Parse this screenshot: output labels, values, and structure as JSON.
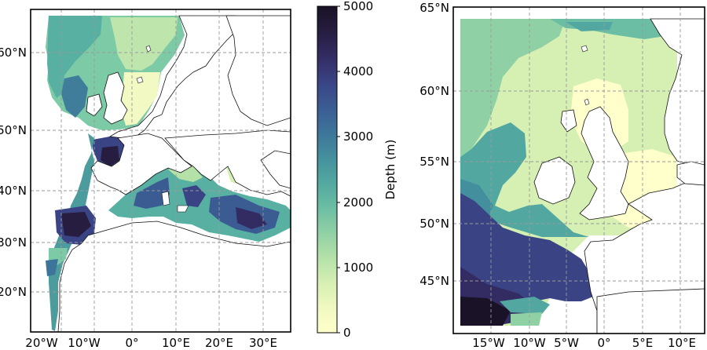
{
  "colorbar": {
    "label": "Depth (m)",
    "min": 0,
    "max": 5000,
    "ticks": [
      "0",
      "1000",
      "2000",
      "3000",
      "4000",
      "5000"
    ],
    "ramp": [
      "#ffffcc",
      "#f0f8c0",
      "#d6efb3",
      "#b3e1a8",
      "#8fd0a5",
      "#6bbda3",
      "#52a8a0",
      "#448f9d",
      "#3d7499",
      "#3b5b93",
      "#3a4384",
      "#332c63",
      "#261d40",
      "#1a1226"
    ]
  },
  "map_left": {
    "lon_labels": [
      "20°W",
      "10°W",
      "0°",
      "10°E",
      "20°E",
      "30°E"
    ],
    "lat_labels": [
      "60°N",
      "50°N",
      "40°N",
      "30°N",
      "20°N"
    ]
  },
  "map_right": {
    "lon_labels": [
      "15°W",
      "10°W",
      "5°W",
      "0°",
      "5°E",
      "10°E"
    ],
    "lat_labels": [
      "65°N",
      "60°N",
      "55°N",
      "50°N",
      "45°N"
    ]
  },
  "colors": {
    "land": "#ffffff",
    "coast": "#111111",
    "grid": "#9a9a9a"
  }
}
